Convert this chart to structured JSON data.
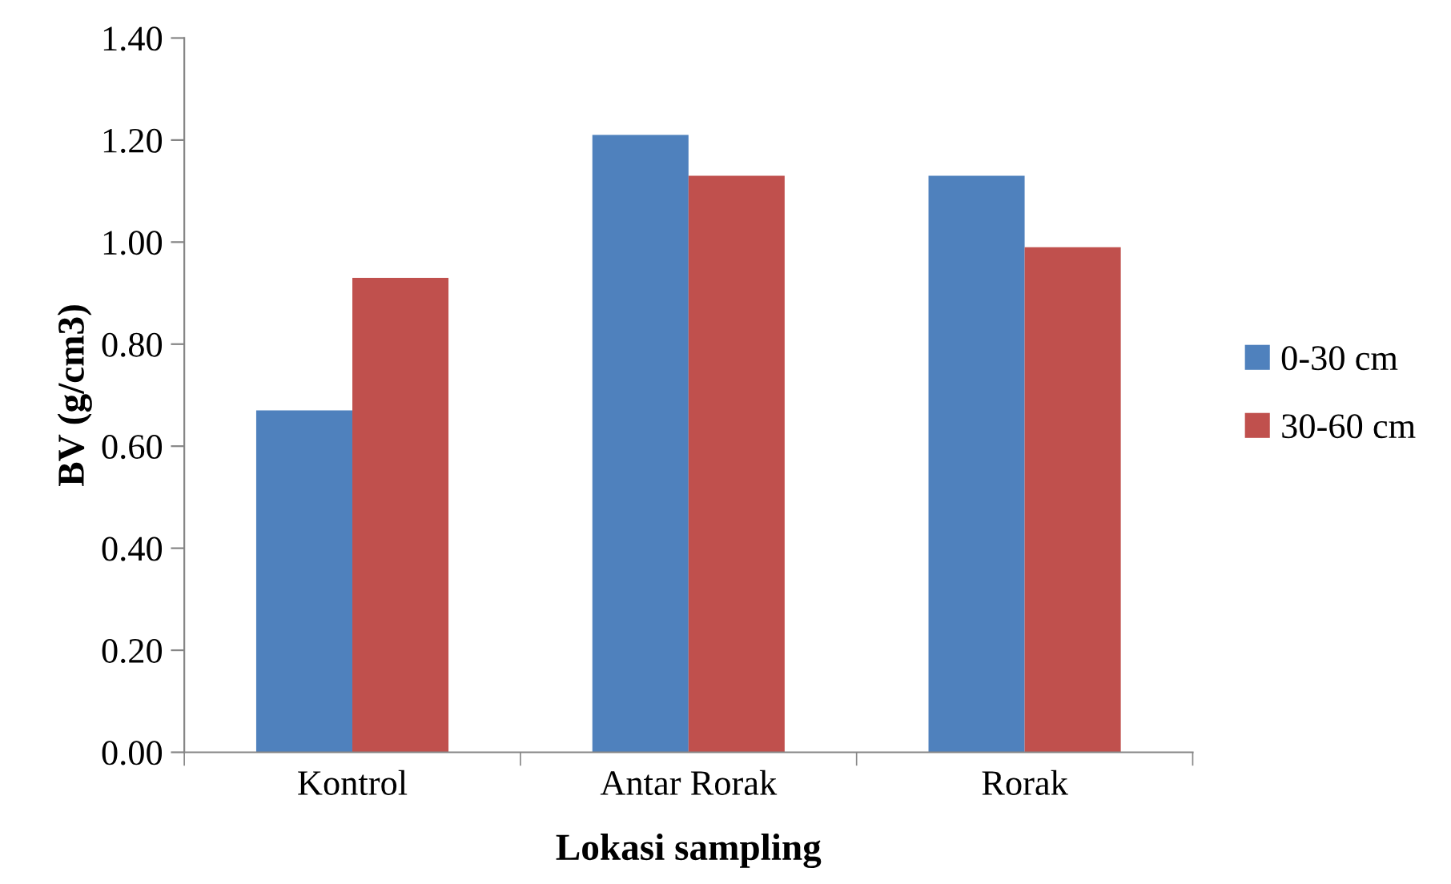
{
  "chart_data": {
    "type": "bar",
    "xlabel": "Lokasi sampling",
    "ylabel": "BV (g/cm3)",
    "categories": [
      "Kontrol",
      "Antar Rorak",
      "Rorak"
    ],
    "series": [
      {
        "name": "0-30 cm",
        "color": "#4f81bd",
        "values": [
          0.67,
          1.21,
          1.13
        ]
      },
      {
        "name": "30-60 cm",
        "color": "#c0504d",
        "values": [
          0.93,
          1.13,
          0.99
        ]
      }
    ],
    "ylim": [
      0,
      1.4
    ],
    "yticks": [
      {
        "value": 0,
        "label": "0.00"
      },
      {
        "value": 0.2,
        "label": "0.20"
      },
      {
        "value": 0.4,
        "label": "0.40"
      },
      {
        "value": 0.6,
        "label": "0.60"
      },
      {
        "value": 0.8,
        "label": "0.80"
      },
      {
        "value": 1.0,
        "label": "1.00"
      },
      {
        "value": 1.2,
        "label": "1.20"
      },
      {
        "value": 1.4,
        "label": "1.40"
      }
    ],
    "grid": false,
    "legend": "right"
  }
}
